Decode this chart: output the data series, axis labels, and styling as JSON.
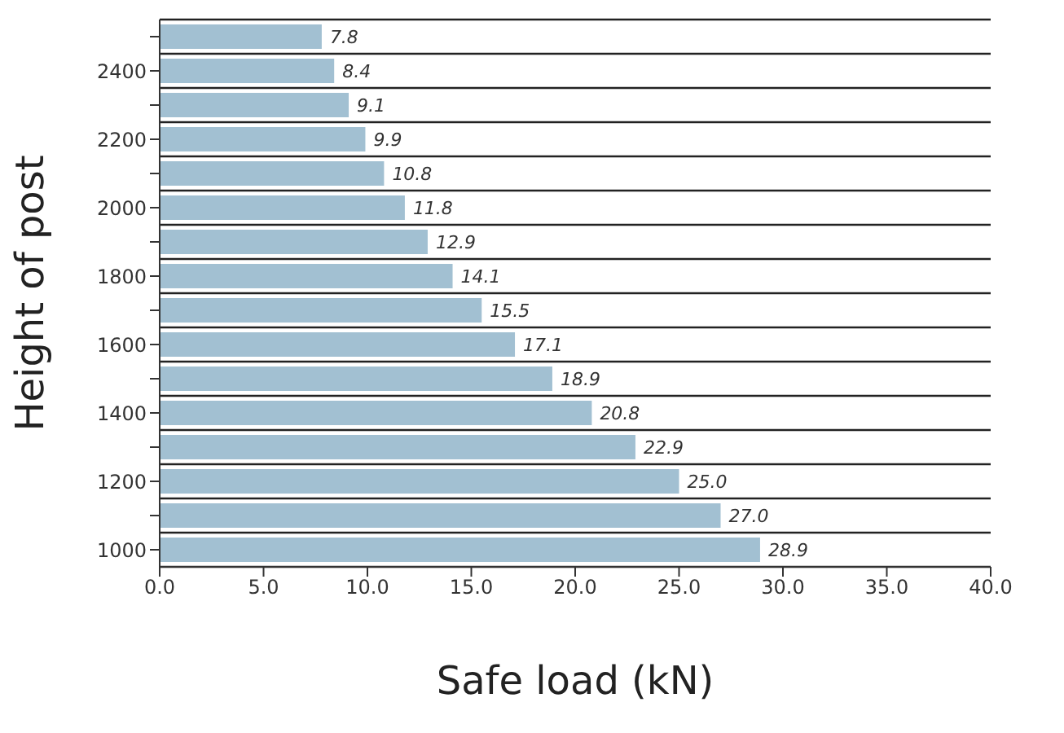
{
  "chart_data": {
    "type": "bar",
    "orientation": "horizontal",
    "xlabel": "Safe load (kN)",
    "ylabel": "Height of post",
    "categories": [
      null,
      "2400",
      null,
      "2200",
      null,
      "2000",
      null,
      "1800",
      null,
      "1600",
      null,
      "1400",
      null,
      "1200",
      null,
      "1000"
    ],
    "values": [
      7.8,
      8.4,
      9.1,
      9.9,
      10.8,
      11.8,
      12.9,
      14.1,
      15.5,
      17.1,
      18.9,
      20.8,
      22.9,
      25.0,
      27.0,
      28.9
    ],
    "value_labels": [
      "7.8",
      "8.4",
      "9.1",
      "9.9",
      "10.8",
      "11.8",
      "12.9",
      "14.1",
      "15.5",
      "17.1",
      "18.9",
      "20.8",
      "22.9",
      "25.0",
      "27.0",
      "28.9"
    ],
    "color": "#a2c0d2",
    "xlim": [
      0,
      40
    ],
    "xticks": [
      {
        "value": 0,
        "label": "0.0"
      },
      {
        "value": 5,
        "label": "5.0"
      },
      {
        "value": 10,
        "label": "10.0"
      },
      {
        "value": 15,
        "label": "15.0"
      },
      {
        "value": 20,
        "label": "20.0"
      },
      {
        "value": 25,
        "label": "25.0"
      },
      {
        "value": 30,
        "label": "30.0"
      },
      {
        "value": 35,
        "label": "35.0"
      },
      {
        "value": 40,
        "label": "40.0"
      }
    ],
    "grid": "y"
  }
}
